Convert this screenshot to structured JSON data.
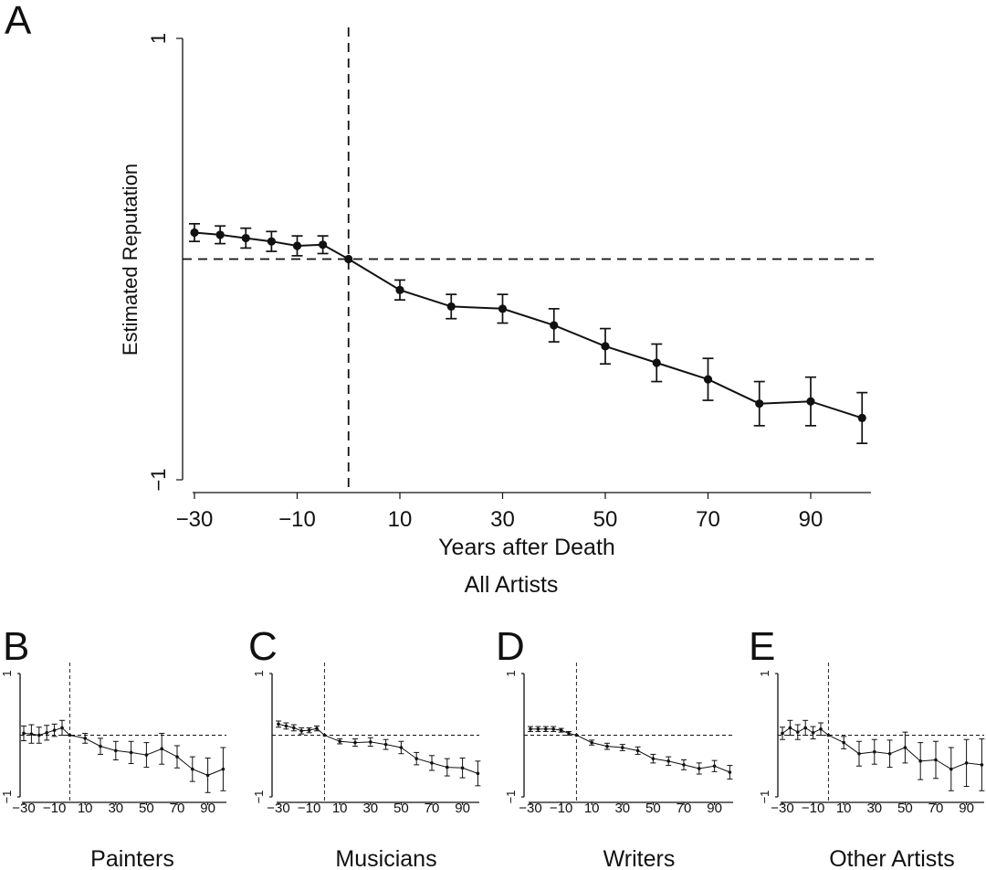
{
  "chart_data": [
    {
      "panel": "A",
      "type": "line",
      "subtitle": "All Artists",
      "xlabel": "Years after Death",
      "ylabel": "Estimated Reputation",
      "xlim": [
        -30,
        100
      ],
      "ylim": [
        -1,
        1
      ],
      "xticks": [
        "−30",
        "−10",
        "10",
        "30",
        "50",
        "70",
        "90"
      ],
      "yticks": [
        "1",
        "−1"
      ],
      "reference_lines": {
        "x": 0,
        "y": 0
      },
      "x": [
        -30,
        -25,
        -20,
        -15,
        -10,
        -5,
        0,
        10,
        20,
        30,
        40,
        50,
        60,
        70,
        80,
        90,
        100
      ],
      "y": [
        0.12,
        0.11,
        0.095,
        0.08,
        0.06,
        0.065,
        0.0,
        -0.14,
        -0.215,
        -0.225,
        -0.3,
        -0.395,
        -0.47,
        -0.545,
        -0.655,
        -0.645,
        -0.72
      ],
      "err": [
        0.04,
        0.04,
        0.045,
        0.045,
        0.045,
        0.04,
        0.0,
        0.045,
        0.055,
        0.065,
        0.075,
        0.08,
        0.085,
        0.095,
        0.1,
        0.11,
        0.115
      ]
    },
    {
      "panel": "B",
      "type": "line",
      "subtitle": "Painters",
      "xlim": [
        -30,
        100
      ],
      "ylim": [
        -1,
        1
      ],
      "xticks": [
        "−30",
        "−10",
        "10",
        "30",
        "50",
        "70",
        "90"
      ],
      "yticks": [
        "1",
        "−1"
      ],
      "reference_lines": {
        "x": 0,
        "y": 0
      },
      "x": [
        -30,
        -25,
        -20,
        -15,
        -10,
        -5,
        0,
        10,
        20,
        30,
        40,
        50,
        60,
        70,
        80,
        90,
        100
      ],
      "y": [
        0.03,
        0.02,
        0.0,
        0.04,
        0.08,
        0.12,
        0.0,
        -0.05,
        -0.18,
        -0.25,
        -0.28,
        -0.32,
        -0.22,
        -0.35,
        -0.55,
        -0.65,
        -0.55
      ],
      "err": [
        0.12,
        0.15,
        0.13,
        0.12,
        0.1,
        0.12,
        0.0,
        0.08,
        0.13,
        0.15,
        0.18,
        0.2,
        0.25,
        0.18,
        0.2,
        0.28,
        0.35
      ]
    },
    {
      "panel": "C",
      "type": "line",
      "subtitle": "Musicians",
      "xlim": [
        -30,
        100
      ],
      "ylim": [
        -1,
        1
      ],
      "xticks": [
        "−30",
        "−10",
        "10",
        "30",
        "50",
        "70",
        "90"
      ],
      "yticks": [
        "1",
        "−1"
      ],
      "reference_lines": {
        "x": 0,
        "y": 0
      },
      "x": [
        -30,
        -25,
        -20,
        -15,
        -10,
        -5,
        0,
        10,
        20,
        30,
        40,
        50,
        60,
        70,
        80,
        90,
        100
      ],
      "y": [
        0.18,
        0.15,
        0.12,
        0.07,
        0.08,
        0.11,
        0.0,
        -0.1,
        -0.12,
        -0.11,
        -0.15,
        -0.2,
        -0.38,
        -0.45,
        -0.52,
        -0.53,
        -0.62
      ],
      "err": [
        0.05,
        0.05,
        0.05,
        0.05,
        0.04,
        0.04,
        0.0,
        0.04,
        0.06,
        0.07,
        0.08,
        0.1,
        0.1,
        0.12,
        0.14,
        0.16,
        0.2
      ]
    },
    {
      "panel": "D",
      "type": "line",
      "subtitle": "Writers",
      "xlim": [
        -30,
        100
      ],
      "ylim": [
        -1,
        1
      ],
      "xticks": [
        "−30",
        "−10",
        "10",
        "30",
        "50",
        "70",
        "90"
      ],
      "yticks": [
        "1",
        "−1"
      ],
      "reference_lines": {
        "x": 0,
        "y": 0
      },
      "x": [
        -30,
        -25,
        -20,
        -15,
        -10,
        -5,
        0,
        10,
        20,
        30,
        40,
        50,
        60,
        70,
        80,
        90,
        100
      ],
      "y": [
        0.1,
        0.1,
        0.1,
        0.1,
        0.08,
        0.03,
        0.0,
        -0.12,
        -0.18,
        -0.2,
        -0.25,
        -0.38,
        -0.42,
        -0.48,
        -0.54,
        -0.5,
        -0.6
      ],
      "err": [
        0.04,
        0.04,
        0.04,
        0.04,
        0.03,
        0.03,
        0.0,
        0.04,
        0.05,
        0.05,
        0.06,
        0.07,
        0.07,
        0.08,
        0.09,
        0.09,
        0.11
      ]
    },
    {
      "panel": "E",
      "type": "line",
      "subtitle": "Other Artists",
      "xlim": [
        -30,
        100
      ],
      "ylim": [
        -1,
        1
      ],
      "xticks": [
        "−30",
        "−10",
        "10",
        "30",
        "50",
        "70",
        "90"
      ],
      "yticks": [
        "1",
        "−1"
      ],
      "reference_lines": {
        "x": 0,
        "y": 0
      },
      "x": [
        -30,
        -25,
        -20,
        -15,
        -10,
        -5,
        0,
        10,
        20,
        30,
        40,
        50,
        60,
        70,
        80,
        90,
        100
      ],
      "y": [
        0.03,
        0.12,
        0.05,
        0.12,
        0.04,
        0.1,
        0.0,
        -0.12,
        -0.3,
        -0.27,
        -0.3,
        -0.2,
        -0.42,
        -0.4,
        -0.55,
        -0.45,
        -0.48
      ],
      "err": [
        0.1,
        0.12,
        0.12,
        0.12,
        0.1,
        0.1,
        0.0,
        0.1,
        0.2,
        0.2,
        0.22,
        0.25,
        0.3,
        0.3,
        0.35,
        0.38,
        0.42
      ]
    }
  ]
}
